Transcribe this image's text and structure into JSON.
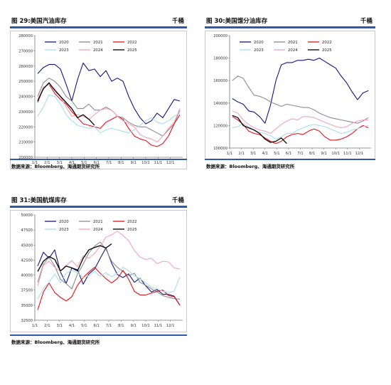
{
  "chart_data": [
    {
      "type": "line",
      "title": "图 29:美国汽油库存",
      "unit": "千桶",
      "source": "数据来源：Bloomberg、海通期货研究所",
      "x_tick_labels": [
        "1/1",
        "2/1",
        "3/1",
        "4/1",
        "5/1",
        "6/1",
        "7/1",
        "8/1",
        "9/1",
        "10/1",
        "11/1",
        "12/1"
      ],
      "ylim": [
        200000,
        280000
      ],
      "y_ticks": [
        200000,
        210000,
        220000,
        230000,
        240000,
        250000,
        260000,
        270000,
        280000
      ],
      "y_tick_labels": [
        "200000",
        "210000",
        "220000",
        "230000",
        "240000",
        "250000",
        "260000",
        "270000",
        "280000"
      ],
      "legend": "top-left",
      "series": [
        {
          "name": "2020",
          "color": "#15157f",
          "x": [
            1,
            3,
            5,
            7,
            9,
            11,
            13,
            15,
            17,
            19,
            21,
            23,
            25,
            27,
            29,
            31,
            33,
            35,
            37,
            39,
            41,
            43,
            45,
            47,
            49,
            51
          ],
          "values": [
            255000,
            259000,
            261000,
            261000,
            258000,
            248000,
            237000,
            251000,
            262000,
            257000,
            258000,
            253000,
            257000,
            250000,
            252000,
            250000,
            240000,
            232000,
            226000,
            222000,
            224000,
            229000,
            226000,
            232000,
            238000,
            237000
          ]
        },
        {
          "name": "2021",
          "color": "#8c8c8c",
          "x": [
            1,
            3,
            5,
            7,
            9,
            11,
            13,
            15,
            17,
            19,
            21,
            23,
            25,
            27,
            29,
            31,
            33,
            35,
            37,
            39,
            41,
            43,
            45,
            47,
            49,
            51
          ],
          "values": [
            240000,
            249000,
            252000,
            250000,
            246000,
            240000,
            237000,
            232000,
            232000,
            235000,
            231000,
            231000,
            233000,
            231000,
            227000,
            226000,
            223000,
            221000,
            220000,
            220000,
            218000,
            216000,
            214000,
            218000,
            222000,
            231000
          ]
        },
        {
          "name": "2022",
          "color": "#e8111b",
          "x": [
            1,
            3,
            5,
            7,
            9,
            11,
            13,
            15,
            17,
            19,
            21,
            23,
            25,
            27,
            29,
            31,
            33,
            35,
            37,
            39,
            41,
            43,
            45,
            47,
            49,
            51
          ],
          "values": [
            236000,
            246000,
            248000,
            242000,
            238000,
            235000,
            230000,
            226000,
            222000,
            221000,
            220000,
            219000,
            223000,
            225000,
            227000,
            225000,
            219000,
            214000,
            212000,
            211000,
            208000,
            207000,
            209000,
            214000,
            222000,
            228000
          ]
        },
        {
          "name": "2023",
          "color": "#a9dcf0",
          "x": [
            1,
            3,
            5,
            7,
            9,
            11,
            13,
            15,
            17,
            19,
            21,
            23,
            25,
            27,
            29,
            31,
            33,
            35,
            37,
            39,
            41,
            43,
            45,
            47,
            49,
            51
          ],
          "values": [
            227000,
            233000,
            241000,
            240000,
            235000,
            228000,
            224000,
            221000,
            220000,
            219000,
            220000,
            216000,
            218000,
            219000,
            218000,
            217000,
            216000,
            218000,
            221000,
            224000,
            226000,
            223000,
            222000,
            224000,
            227000,
            229000
          ]
        },
        {
          "name": "2024",
          "color": "#f2a4b8",
          "x": [
            1,
            3,
            5,
            7,
            9,
            11,
            13,
            15,
            17,
            19,
            21,
            23,
            25,
            27,
            29,
            31,
            33,
            35,
            37,
            39,
            41,
            43,
            45,
            47,
            49,
            51
          ],
          "values": [
            238000,
            246000,
            248000,
            245000,
            240000,
            233000,
            227000,
            228000,
            227000,
            225000,
            228000,
            231000,
            232000,
            231000,
            227000,
            224000,
            222000,
            220000,
            215000,
            213000,
            212000,
            210000,
            214000,
            219000,
            223000,
            232000
          ]
        },
        {
          "name": "2025",
          "color": "#000000",
          "x": [
            1,
            3,
            5,
            7,
            9,
            11,
            13,
            15,
            17,
            19,
            21
          ],
          "values": [
            237000,
            245000,
            249000,
            244000,
            240000,
            236000,
            232000,
            226000,
            228000,
            225000,
            221000
          ]
        }
      ]
    },
    {
      "type": "line",
      "title": "图 30:美国馏分油库存",
      "unit": "千桶",
      "source": "数据来源：Bloomberg、海通期货研究所",
      "x_tick_labels": [
        "1/1",
        "2/1",
        "3/1",
        "4/1",
        "5/1",
        "6/1",
        "7/1",
        "8/1",
        "9/1",
        "10/1",
        "11/1",
        "12/1"
      ],
      "ylim": [
        100000,
        200000
      ],
      "y_ticks": [
        100000,
        120000,
        140000,
        160000,
        180000,
        200000
      ],
      "y_tick_labels": [
        "100000",
        "120000",
        "140000",
        "160000",
        "180000",
        "200000"
      ],
      "legend": "top-left",
      "series": [
        {
          "name": "2020",
          "color": "#15157f",
          "x": [
            1,
            3,
            5,
            7,
            9,
            11,
            13,
            15,
            17,
            19,
            21,
            23,
            25,
            27,
            29,
            31,
            33,
            35,
            37,
            39,
            41,
            43,
            45,
            47,
            49,
            51
          ],
          "values": [
            144000,
            141000,
            139000,
            133000,
            132000,
            128000,
            122000,
            138000,
            160000,
            174000,
            176000,
            176000,
            178000,
            178000,
            179000,
            178000,
            180000,
            177000,
            174000,
            171000,
            164000,
            158000,
            150000,
            143000,
            149000,
            151000
          ]
        },
        {
          "name": "2021",
          "color": "#8c8c8c",
          "x": [
            1,
            3,
            5,
            7,
            9,
            11,
            13,
            15,
            17,
            19,
            21,
            23,
            25,
            27,
            29,
            31,
            33,
            35,
            37,
            39,
            41,
            43,
            45,
            47,
            49,
            51
          ],
          "values": [
            160000,
            164000,
            162000,
            154000,
            147000,
            146000,
            144000,
            141000,
            139000,
            137000,
            139000,
            138000,
            137000,
            136000,
            136000,
            134000,
            131000,
            129000,
            127000,
            126000,
            125000,
            124000,
            123000,
            122000,
            124000,
            127000
          ]
        },
        {
          "name": "2022",
          "color": "#e8111b",
          "x": [
            1,
            3,
            5,
            7,
            9,
            11,
            13,
            15,
            17,
            19,
            21,
            23,
            25,
            27,
            29,
            31,
            33,
            35,
            37,
            39,
            41,
            43,
            45,
            47,
            49,
            51
          ],
          "values": [
            128000,
            125000,
            121000,
            115000,
            113000,
            112000,
            109000,
            106000,
            104000,
            106000,
            110000,
            112000,
            113000,
            112000,
            115000,
            117000,
            115000,
            110000,
            107000,
            107000,
            108000,
            110000,
            113000,
            117000,
            120000,
            118000
          ]
        },
        {
          "name": "2023",
          "color": "#a9dcf0",
          "x": [
            1,
            3,
            5,
            7,
            9,
            11,
            13,
            15,
            17,
            19,
            21,
            23,
            25,
            27,
            29,
            31,
            33,
            35,
            37,
            39,
            41,
            43,
            45,
            47,
            49,
            51
          ],
          "values": [
            118000,
            119000,
            122000,
            119000,
            116000,
            114000,
            113000,
            111000,
            108000,
            110000,
            113000,
            113000,
            116000,
            118000,
            120000,
            121000,
            120000,
            119000,
            117000,
            115000,
            113000,
            114000,
            116000,
            117000,
            119000,
            120000
          ]
        },
        {
          "name": "2024",
          "color": "#f2a4b8",
          "x": [
            1,
            3,
            5,
            7,
            9,
            11,
            13,
            15,
            17,
            19,
            21,
            23,
            25,
            27,
            29,
            31,
            33,
            35,
            37,
            39,
            41,
            43,
            45,
            47,
            49,
            51
          ],
          "values": [
            133000,
            131000,
            125000,
            121000,
            118000,
            116000,
            115000,
            113000,
            117000,
            121000,
            124000,
            126000,
            125000,
            128000,
            128000,
            127000,
            125000,
            123000,
            121000,
            119000,
            118000,
            119000,
            122000,
            124000,
            125000,
            125000
          ]
        },
        {
          "name": "2025",
          "color": "#000000",
          "x": [
            1,
            3,
            5,
            7,
            9,
            11,
            13,
            15,
            17,
            19,
            21
          ],
          "values": [
            129000,
            127000,
            120000,
            118000,
            116000,
            113000,
            108000,
            105000,
            106000,
            109000,
            104000
          ]
        }
      ]
    },
    {
      "type": "line",
      "title": "图 31:美国航煤库存",
      "unit": "千桶",
      "source": "数据来源：Bloomberg、海通期货研究所",
      "x_tick_labels": [
        "1/1",
        "2/1",
        "3/1",
        "4/1",
        "5/1",
        "6/1",
        "7/1",
        "8/1",
        "9/1",
        "10/1",
        "11/1",
        "12/1"
      ],
      "ylim": [
        32500,
        50000
      ],
      "y_ticks": [
        32500,
        35000,
        37500,
        40000,
        42500,
        45000,
        47500,
        50000
      ],
      "y_tick_labels": [
        "32500",
        "35000",
        "37500",
        "40000",
        "42500",
        "45000",
        "47500",
        "50000"
      ],
      "legend": "top-left",
      "series": [
        {
          "name": "2020",
          "color": "#15157f",
          "x": [
            1,
            3,
            5,
            7,
            9,
            11,
            13,
            15,
            17,
            19,
            21,
            23,
            25,
            27,
            29,
            31,
            33,
            35,
            37,
            39,
            41,
            43,
            45,
            47,
            49,
            51
          ],
          "values": [
            41500,
            43800,
            42800,
            44200,
            40500,
            38600,
            41200,
            40900,
            38500,
            40200,
            41000,
            42800,
            44500,
            42000,
            40100,
            39600,
            40200,
            38800,
            39500,
            38200,
            37200,
            37600,
            36800,
            36800,
            36500,
            35000
          ]
        },
        {
          "name": "2021",
          "color": "#8c8c8c",
          "x": [
            1,
            3,
            5,
            7,
            9,
            11,
            13,
            15,
            17,
            19,
            21,
            23,
            25,
            27,
            29,
            31,
            33,
            35,
            37,
            39,
            41,
            43,
            45,
            47,
            49,
            51
          ],
          "values": [
            38800,
            41800,
            43000,
            41500,
            39300,
            38600,
            37700,
            40200,
            41800,
            43700,
            44800,
            45500,
            44300,
            42300,
            41300,
            40600,
            39900,
            40300,
            38800,
            38300,
            37700,
            37200,
            36600,
            36300,
            36100,
            36000
          ]
        },
        {
          "name": "2022",
          "color": "#e8111b",
          "x": [
            1,
            3,
            5,
            7,
            9,
            11,
            13,
            15,
            17,
            19,
            21,
            23,
            25,
            27,
            29,
            31,
            33,
            35,
            37,
            39,
            41,
            43,
            45,
            47,
            49,
            51
          ],
          "values": [
            34200,
            37200,
            38700,
            37100,
            36300,
            35700,
            36400,
            38300,
            39600,
            40500,
            41300,
            40300,
            39400,
            38700,
            39400,
            40800,
            39300,
            37300,
            36700,
            36700,
            37000,
            37300,
            37500,
            36600,
            36400,
            35000
          ]
        },
        {
          "name": "2023",
          "color": "#a9dcf0",
          "x": [
            1,
            3,
            5,
            7,
            9,
            11,
            13,
            15,
            17,
            19,
            21,
            23,
            25,
            27,
            29,
            31,
            33,
            35,
            37,
            39,
            41,
            43,
            45,
            47,
            49,
            51
          ],
          "values": [
            36000,
            37800,
            38800,
            40200,
            38700,
            40300,
            40800,
            40400,
            39600,
            39900,
            40600,
            39800,
            40400,
            39700,
            40300,
            41300,
            40700,
            39900,
            39400,
            38700,
            38000,
            37700,
            37300,
            37100,
            37300,
            39700
          ]
        },
        {
          "name": "2024",
          "color": "#f2a4b8",
          "x": [
            1,
            3,
            5,
            7,
            9,
            11,
            13,
            15,
            17,
            19,
            21,
            23,
            25,
            27,
            29,
            31,
            33,
            35,
            37,
            39,
            41,
            43,
            45,
            47,
            49,
            51
          ],
          "values": [
            38200,
            41600,
            42300,
            41300,
            40600,
            41600,
            42400,
            41400,
            43200,
            42800,
            43600,
            44800,
            46300,
            46700,
            47300,
            46600,
            45700,
            44100,
            43000,
            42600,
            42800,
            41900,
            42300,
            42200,
            41200,
            41000
          ]
        },
        {
          "name": "2025",
          "color": "#000000",
          "x": [
            1,
            3,
            5,
            7,
            9,
            11,
            13,
            15,
            17,
            19,
            21,
            23,
            25,
            27
          ],
          "values": [
            40600,
            42300,
            43100,
            42600,
            40700,
            41500,
            41200,
            40700,
            42800,
            44200,
            44600,
            44900,
            44500,
            45200
          ]
        }
      ]
    }
  ]
}
